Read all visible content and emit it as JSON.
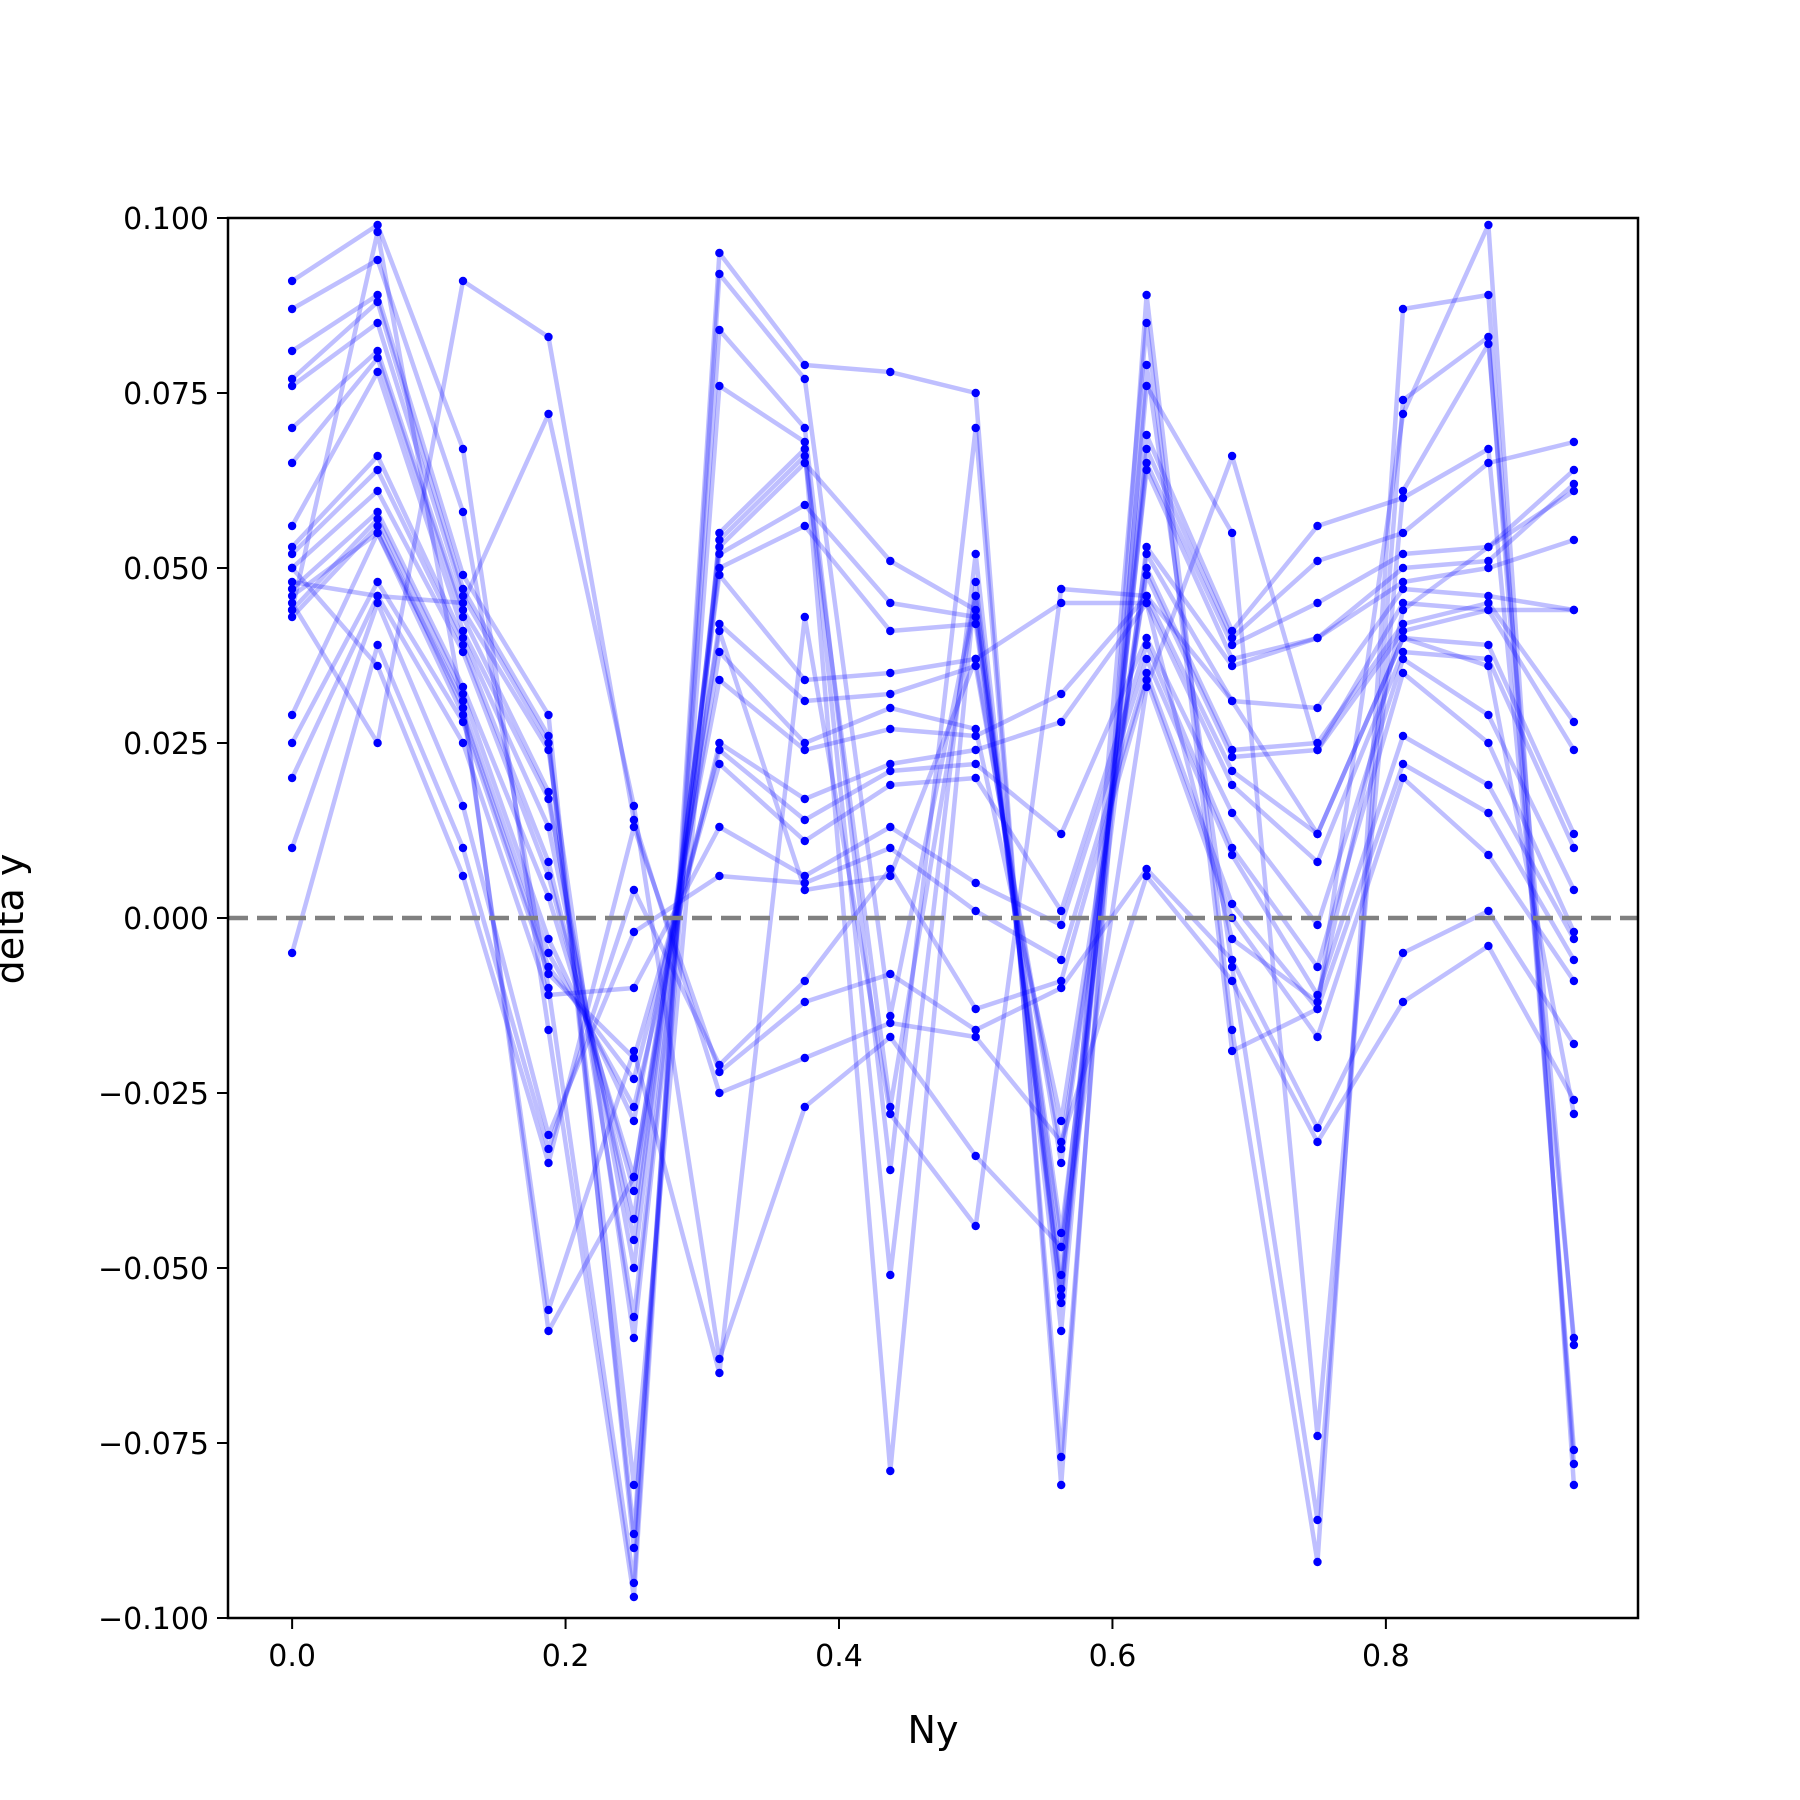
{
  "chart_data": {
    "type": "line",
    "xlabel": "Ny",
    "ylabel": "delta y",
    "xlim": [
      -0.0469,
      0.9844
    ],
    "ylim": [
      -0.1,
      0.1
    ],
    "xticks": [
      0.0,
      0.2,
      0.4,
      0.6,
      0.8
    ],
    "xtick_labels": [
      "0.0",
      "0.2",
      "0.4",
      "0.6",
      "0.8"
    ],
    "yticks": [
      -0.1,
      -0.075,
      -0.05,
      -0.025,
      0.0,
      0.025,
      0.05,
      0.075,
      0.1
    ],
    "ytick_labels": [
      "−0.100",
      "−0.075",
      "−0.050",
      "−0.025",
      "0.000",
      "0.025",
      "0.050",
      "0.075",
      "0.100"
    ],
    "reference_line": {
      "y": 0.0,
      "style": "dashed",
      "color": "#808080"
    },
    "line_color": "#0000ff",
    "line_opacity": 0.25,
    "marker_color": "#0000ff",
    "grid": false,
    "legend": "none",
    "x": [
      0.0,
      0.0625,
      0.125,
      0.1875,
      0.25,
      0.3125,
      0.375,
      0.4375,
      0.5,
      0.5625,
      0.625,
      0.6875,
      0.75,
      0.8125,
      0.875,
      0.9375
    ],
    "series": [
      {
        "values": [
          0.091,
          0.099,
          0.067,
          -0.016,
          -0.097,
          0.092,
          0.077,
          -0.014,
          0.046,
          -0.054,
          0.085,
          -0.019,
          -0.013,
          0.072,
          0.099,
          -0.081
        ]
      },
      {
        "values": [
          0.087,
          0.094,
          0.058,
          -0.01,
          -0.095,
          0.095,
          0.079,
          0.078,
          0.075,
          -0.081,
          0.089,
          -0.016,
          -0.092,
          0.087,
          0.089,
          -0.078
        ]
      },
      {
        "values": [
          0.081,
          0.089,
          0.049,
          0.029,
          -0.09,
          0.084,
          0.07,
          -0.036,
          0.07,
          -0.077,
          0.079,
          -0.007,
          -0.086,
          0.074,
          0.083,
          -0.076
        ]
      },
      {
        "values": [
          0.077,
          0.088,
          0.047,
          0.026,
          -0.088,
          0.076,
          0.068,
          -0.051,
          0.052,
          -0.059,
          0.076,
          0.055,
          -0.074,
          0.061,
          0.082,
          -0.061
        ]
      },
      {
        "values": [
          0.076,
          0.085,
          0.046,
          0.025,
          -0.081,
          0.055,
          0.067,
          -0.079,
          0.048,
          -0.055,
          0.069,
          0.041,
          0.056,
          0.06,
          0.067,
          -0.06
        ]
      },
      {
        "values": [
          0.07,
          0.081,
          0.044,
          0.024,
          -0.06,
          0.054,
          0.066,
          -0.027,
          0.046,
          -0.053,
          0.067,
          0.04,
          0.051,
          0.055,
          0.065,
          0.068
        ]
      },
      {
        "values": [
          0.065,
          0.08,
          0.043,
          0.018,
          -0.057,
          0.053,
          0.065,
          0.051,
          0.044,
          -0.051,
          0.065,
          0.039,
          0.045,
          0.052,
          0.053,
          0.064
        ]
      },
      {
        "values": [
          0.056,
          0.078,
          0.041,
          0.017,
          -0.05,
          0.052,
          0.059,
          0.045,
          0.043,
          -0.047,
          0.064,
          0.037,
          0.04,
          0.05,
          0.051,
          0.062
        ]
      },
      {
        "values": [
          0.053,
          0.066,
          0.04,
          0.013,
          -0.046,
          0.05,
          0.056,
          0.041,
          0.042,
          -0.045,
          0.053,
          0.036,
          0.04,
          0.048,
          0.05,
          0.054
        ]
      },
      {
        "values": [
          0.052,
          0.064,
          0.039,
          0.008,
          -0.043,
          0.049,
          0.034,
          0.035,
          0.037,
          -0.035,
          0.052,
          0.031,
          0.03,
          0.047,
          0.046,
          0.044
        ]
      },
      {
        "values": [
          0.05,
          0.061,
          0.038,
          0.006,
          -0.039,
          0.042,
          0.031,
          0.032,
          0.036,
          -0.033,
          0.05,
          0.024,
          0.025,
          0.042,
          0.045,
          0.028
        ]
      },
      {
        "values": [
          0.047,
          0.058,
          0.033,
          0.003,
          -0.037,
          0.038,
          0.025,
          0.03,
          0.027,
          -0.029,
          0.049,
          0.023,
          0.024,
          0.041,
          0.044,
          0.024
        ]
      },
      {
        "values": [
          0.044,
          0.057,
          0.032,
          -0.003,
          -0.029,
          0.034,
          0.024,
          0.027,
          0.026,
          0.032,
          0.046,
          0.021,
          0.012,
          0.04,
          0.039,
          0.012
        ]
      },
      {
        "values": [
          0.043,
          0.056,
          0.03,
          -0.005,
          -0.027,
          0.025,
          0.017,
          0.022,
          0.024,
          0.028,
          0.045,
          0.019,
          0.008,
          0.038,
          0.037,
          0.01
        ]
      },
      {
        "values": [
          0.029,
          0.055,
          0.029,
          -0.007,
          -0.023,
          0.024,
          0.014,
          0.021,
          0.022,
          0.012,
          0.04,
          0.015,
          -0.001,
          0.037,
          0.029,
          0.004
        ]
      },
      {
        "values": [
          0.025,
          0.048,
          0.028,
          -0.008,
          -0.02,
          0.022,
          0.011,
          0.019,
          0.02,
          0.001,
          0.039,
          0.01,
          -0.007,
          0.035,
          0.025,
          -0.002
        ]
      },
      {
        "values": [
          0.02,
          0.046,
          0.025,
          -0.011,
          -0.01,
          0.013,
          0.006,
          0.013,
          0.005,
          -0.001,
          0.037,
          0.009,
          -0.011,
          0.026,
          0.019,
          -0.003
        ]
      },
      {
        "values": [
          0.01,
          0.045,
          0.016,
          -0.031,
          -0.002,
          0.006,
          0.005,
          0.01,
          0.001,
          -0.006,
          0.035,
          0.002,
          -0.013,
          0.022,
          0.015,
          -0.006
        ]
      },
      {
        "values": [
          -0.005,
          0.039,
          0.01,
          -0.033,
          0.004,
          -0.021,
          -0.009,
          0.007,
          -0.013,
          -0.009,
          0.034,
          0.0,
          -0.017,
          0.02,
          0.009,
          -0.009
        ]
      },
      {
        "values": [
          0.05,
          0.036,
          0.006,
          -0.035,
          0.013,
          -0.022,
          -0.012,
          -0.008,
          -0.016,
          -0.01,
          0.007,
          -0.006,
          -0.03,
          -0.005,
          0.001,
          -0.018
        ]
      },
      {
        "values": [
          0.045,
          0.025,
          0.091,
          0.083,
          0.014,
          -0.025,
          -0.02,
          -0.015,
          -0.017,
          -0.032,
          0.006,
          -0.009,
          -0.032,
          -0.012,
          -0.004,
          -0.026
        ]
      },
      {
        "values": [
          0.048,
          0.046,
          0.045,
          0.072,
          0.016,
          -0.063,
          -0.027,
          -0.017,
          -0.034,
          -0.047,
          0.033,
          0.066,
          0.024,
          0.045,
          0.044,
          0.044
        ]
      },
      {
        "values": [
          0.044,
          0.098,
          0.03,
          -0.056,
          -0.019,
          -0.065,
          0.043,
          -0.028,
          -0.044,
          0.047,
          0.046,
          0.031,
          0.012,
          0.04,
          0.036,
          -0.028
        ]
      },
      {
        "values": [
          0.046,
          0.055,
          0.031,
          -0.059,
          -0.037,
          0.041,
          0.004,
          0.006,
          0.037,
          0.045,
          0.045,
          -0.003,
          -0.012,
          0.044,
          0.053,
          0.061
        ]
      }
    ]
  }
}
